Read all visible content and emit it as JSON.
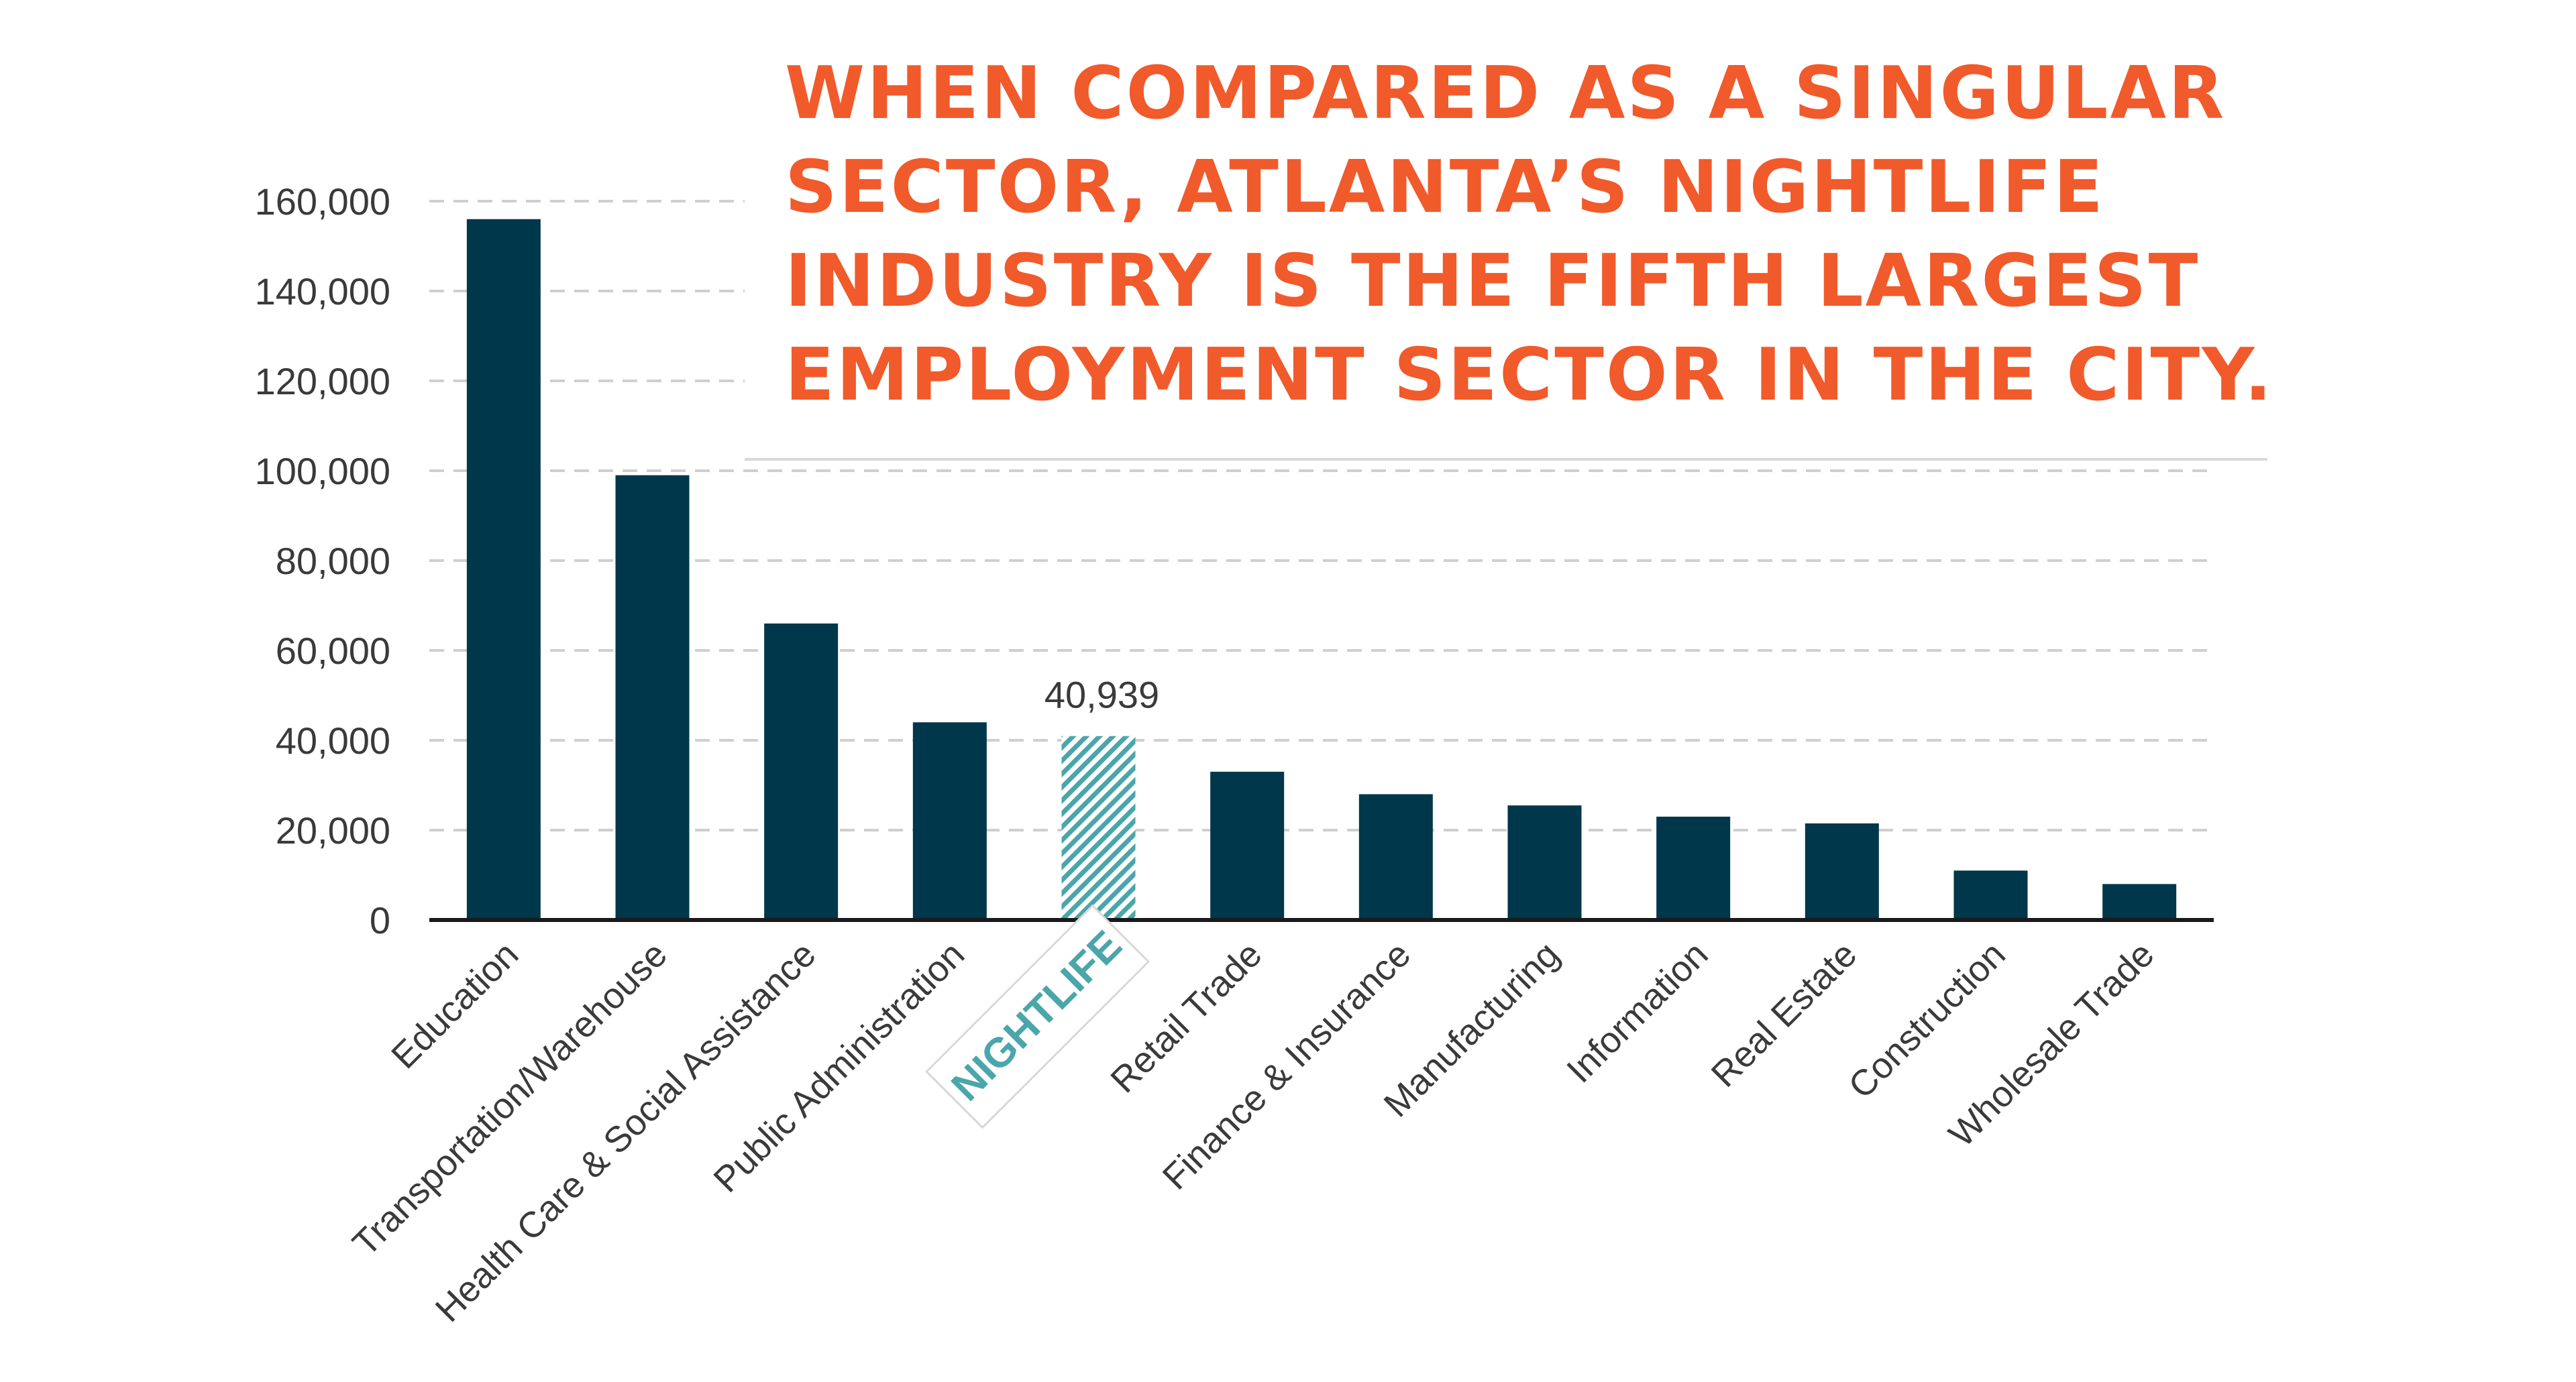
{
  "headline": {
    "lines": [
      "WHEN COMPARED AS A SINGULAR",
      "SECTOR, ATLANTA’S NIGHTLIFE",
      "INDUSTRY IS THE FIFTH LARGEST",
      "EMPLOYMENT SECTOR IN THE CITY."
    ]
  },
  "colors": {
    "bar": "#00374b",
    "highlight": "#4aa6aa",
    "headline": "#f15a2b",
    "axis_text": "#3a3a3a"
  },
  "chart_data": {
    "type": "bar",
    "title": "",
    "xlabel": "",
    "ylabel": "",
    "ylim": [
      0,
      160000
    ],
    "yticks": [
      0,
      20000,
      40000,
      60000,
      80000,
      100000,
      120000,
      140000,
      160000
    ],
    "ytick_labels": [
      "0",
      "20,000",
      "40,000",
      "60,000",
      "80,000",
      "100,000",
      "120,000",
      "140,000",
      "160,000"
    ],
    "grid": true,
    "categories": [
      "Education",
      "Transportation/Warehouse",
      "Health Care & Social Assistance",
      "Public Administration",
      "NIGHTLIFE",
      "Retail Trade",
      "Finance & Insurance",
      "Manufacturing",
      "Information",
      "Real Estate",
      "Construction",
      "Wholesale Trade"
    ],
    "values": [
      156000,
      99000,
      66000,
      44000,
      40939,
      33000,
      28000,
      25500,
      23000,
      21500,
      11000,
      8000
    ],
    "highlight_category": "NIGHTLIFE",
    "data_labels": [
      {
        "category": "NIGHTLIFE",
        "text": "40,939"
      }
    ]
  }
}
